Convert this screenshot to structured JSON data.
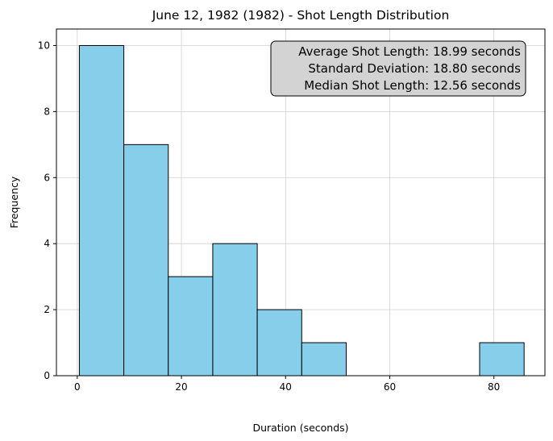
{
  "chart_data": {
    "type": "bar",
    "title": "June 12, 1982 (1982) - Shot Length Distribution",
    "xlabel": "Duration (seconds)",
    "ylabel": "Frequency",
    "xlim": [
      -4.0,
      89.8
    ],
    "ylim": [
      0,
      10.5
    ],
    "x_ticks": [
      0,
      20,
      40,
      60,
      80
    ],
    "y_ticks": [
      0,
      2,
      4,
      6,
      8,
      10
    ],
    "grid": true,
    "bin_edges": [
      0.4,
      8.94,
      17.48,
      26.02,
      34.56,
      43.1,
      51.64,
      60.18,
      68.72,
      77.26,
      85.8
    ],
    "values": [
      10,
      7,
      3,
      4,
      2,
      1,
      0,
      0,
      0,
      1
    ],
    "bar_color": "#87CEEB",
    "edge_color": "#000000",
    "annotation": {
      "lines": [
        "Average Shot Length: 18.99 seconds",
        "Standard Deviation: 18.80 seconds",
        "Median Shot Length: 12.56 seconds"
      ],
      "placement": "top-right",
      "box_color": "#d3d3d3"
    }
  }
}
